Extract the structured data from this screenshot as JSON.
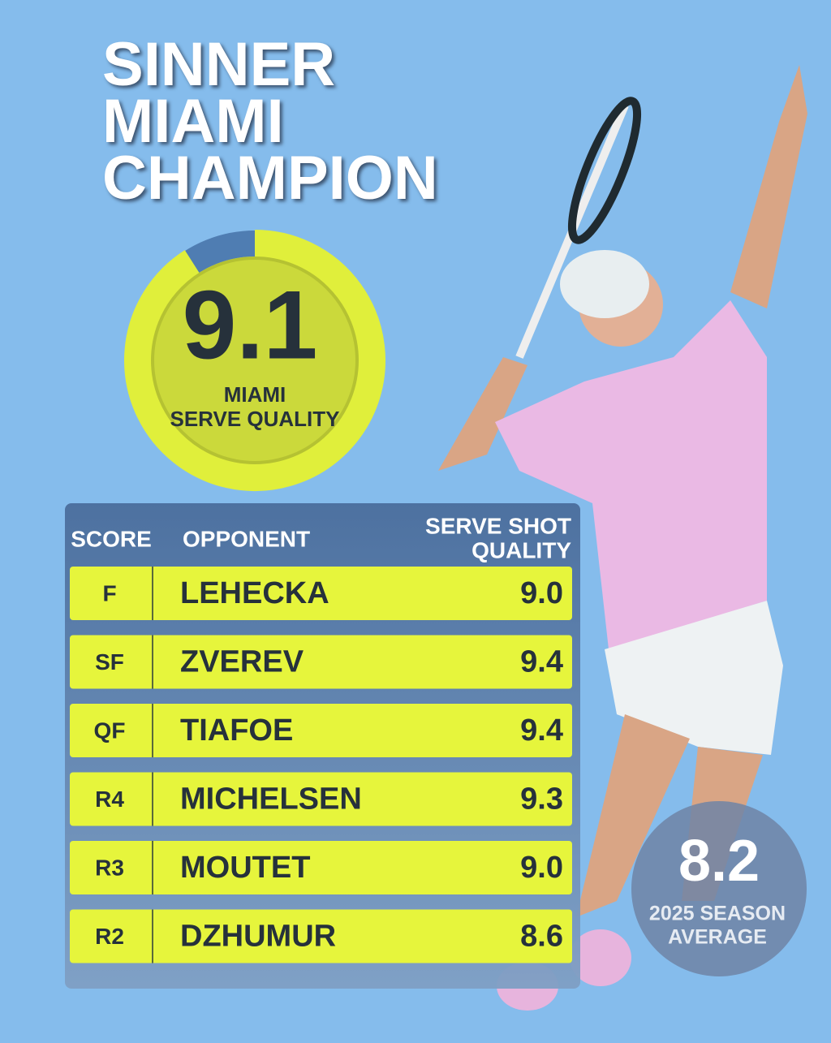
{
  "title": [
    "SINNER",
    "MIAMI",
    "CHAMPION"
  ],
  "gauge": {
    "value": 9.1,
    "lim": [
      0,
      10
    ],
    "label": [
      "MIAMI",
      "SERVE QUALITY"
    ]
  },
  "table": {
    "header": [
      "SCORE",
      "OPPONENT",
      [
        "SERVE SHOT",
        "QUALITY"
      ]
    ],
    "rows": [
      [
        "F",
        "LEHECKA",
        "9.0"
      ],
      [
        "SF",
        "ZVEREV",
        "9.4"
      ],
      [
        "QF",
        "TIAFOE",
        "9.4"
      ],
      [
        "R4",
        "MICHELSEN",
        "9.3"
      ],
      [
        "R3",
        "MOUTET",
        "9.0"
      ],
      [
        "R2",
        "DZHUMUR",
        "8.6"
      ]
    ]
  },
  "season_average": {
    "value": 8.2,
    "label": [
      "2025 SEASON",
      "AVERAGE"
    ]
  }
}
